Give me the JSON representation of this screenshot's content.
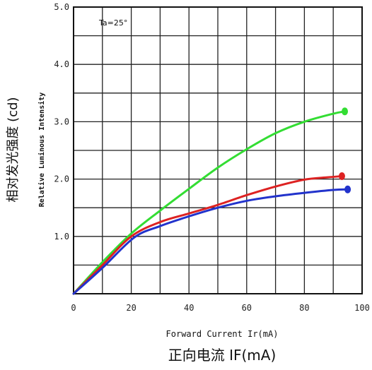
{
  "chart_data": {
    "type": "line",
    "xlabel": "Forward Current Ir(mA)",
    "xlabel_cn": "正向电流 IF(mA)",
    "ylabel": "Relative Luminous Intensity",
    "ylabel_cn": "相对发光强度 (cd)",
    "annotation": "Ta=25°",
    "xlim": [
      0,
      100
    ],
    "ylim": [
      0,
      5.0
    ],
    "x_ticks": [
      "0",
      "20",
      "40",
      "60",
      "80",
      "100"
    ],
    "y_ticks": [
      "1.0",
      "2.0",
      "3.0",
      "4.0",
      "5.0"
    ],
    "grid": true,
    "series": [
      {
        "color": "#33dd33",
        "x": [
          0,
          10,
          20,
          30,
          40,
          50,
          60,
          70,
          80,
          90,
          94
        ],
        "y": [
          0,
          0.55,
          1.05,
          1.45,
          1.83,
          2.2,
          2.52,
          2.8,
          3.0,
          3.14,
          3.18
        ]
      },
      {
        "color": "#dd2222",
        "x": [
          0,
          10,
          20,
          30,
          40,
          50,
          60,
          70,
          80,
          88,
          93
        ],
        "y": [
          0,
          0.5,
          1.0,
          1.25,
          1.4,
          1.55,
          1.72,
          1.87,
          1.99,
          2.03,
          2.05
        ]
      },
      {
        "color": "#2233cc",
        "x": [
          0,
          10,
          21,
          30,
          40,
          50,
          60,
          70,
          80,
          90,
          95
        ],
        "y": [
          0,
          0.45,
          0.98,
          1.18,
          1.35,
          1.5,
          1.62,
          1.7,
          1.76,
          1.81,
          1.82
        ]
      }
    ]
  }
}
